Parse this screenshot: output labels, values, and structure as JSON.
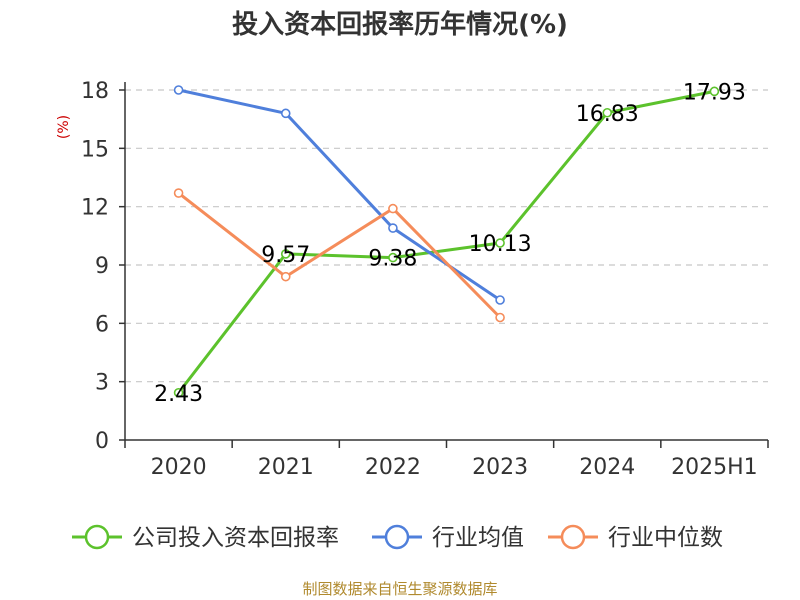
{
  "chart_data": {
    "type": "line",
    "title": "投入资本回报率历年情况(%)",
    "ylabel": "(%)",
    "categories": [
      "2020",
      "2021",
      "2022",
      "2023",
      "2024",
      "2025H1"
    ],
    "ylim": [
      0,
      18
    ],
    "yticks": [
      0,
      3,
      6,
      9,
      12,
      15,
      18
    ],
    "grid": true,
    "legend_position": "bottom",
    "series": [
      {
        "name": "公司投入资本回报率",
        "color": "#5cc22c",
        "values": [
          2.43,
          9.57,
          9.38,
          10.13,
          16.83,
          17.93
        ],
        "labels": [
          "2.43",
          "9.57",
          "9.38",
          "10.13",
          "16.83",
          "17.93"
        ]
      },
      {
        "name": "行业均值",
        "color": "#4f7fdb",
        "values": [
          18.0,
          16.8,
          10.9,
          7.2,
          null,
          null
        ]
      },
      {
        "name": "行业中位数",
        "color": "#f58c5a",
        "values": [
          12.7,
          8.4,
          11.9,
          6.3,
          null,
          null
        ]
      }
    ],
    "source": "制图数据来自恒生聚源数据库"
  }
}
